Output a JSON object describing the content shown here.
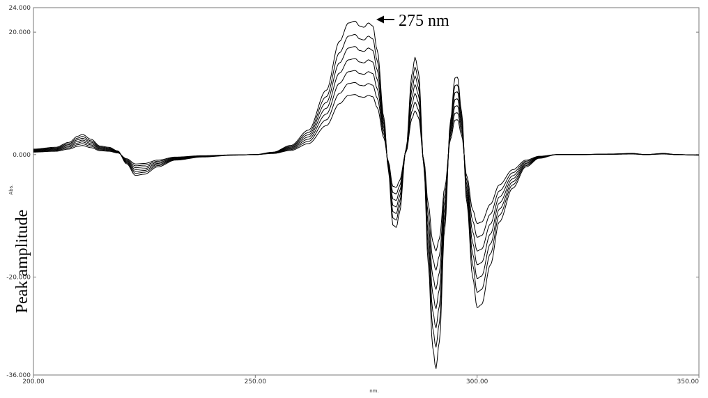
{
  "chart_data": {
    "type": "line",
    "title": "",
    "xlabel": "nm.",
    "ylabel_small": "Abs.",
    "ylabel_overlay": "Peak amplitude",
    "xlim": [
      200,
      350
    ],
    "ylim": [
      -36,
      24
    ],
    "x_ticks": [
      200,
      250,
      300,
      350
    ],
    "x_tick_labels": [
      "200.00",
      "250.00",
      "300.00",
      "350.00"
    ],
    "y_ticks": [
      24,
      20,
      0,
      -20,
      -36
    ],
    "y_tick_labels": [
      "24.000",
      "20.000",
      "0.000",
      "-20.000",
      "-36.000"
    ],
    "grid": false,
    "legend": "none",
    "annotation": {
      "text": "275 nm",
      "x": 275,
      "y": 21.8
    },
    "line_color": "#000000",
    "curve_scales": [
      0.45,
      0.54,
      0.63,
      0.72,
      0.81,
      0.9,
      1.0
    ],
    "profile_max_curve": [
      [
        200,
        0.9
      ],
      [
        205,
        1.2
      ],
      [
        208,
        2.0
      ],
      [
        210,
        3.0
      ],
      [
        211,
        3.3
      ],
      [
        213,
        2.5
      ],
      [
        215,
        1.4
      ],
      [
        217,
        1.2
      ],
      [
        219,
        0.6
      ],
      [
        221,
        -1.5
      ],
      [
        223,
        -3.4
      ],
      [
        225,
        -3.2
      ],
      [
        228,
        -2.0
      ],
      [
        232,
        -0.9
      ],
      [
        238,
        -0.4
      ],
      [
        245,
        -0.1
      ],
      [
        250,
        0.0
      ],
      [
        254,
        0.4
      ],
      [
        258,
        1.5
      ],
      [
        262,
        4.0
      ],
      [
        266,
        10.5
      ],
      [
        269,
        18.5
      ],
      [
        271,
        21.5
      ],
      [
        272.5,
        21.8
      ],
      [
        273.5,
        21.0
      ],
      [
        274.5,
        20.8
      ],
      [
        275.5,
        21.5
      ],
      [
        276.5,
        21.0
      ],
      [
        277.5,
        17.0
      ],
      [
        279,
        6.0
      ],
      [
        280,
        -2.5
      ],
      [
        281,
        -11.5
      ],
      [
        281.8,
        -11.9
      ],
      [
        282.5,
        -9.5
      ],
      [
        284,
        1.0
      ],
      [
        285.3,
        13.0
      ],
      [
        286,
        15.9
      ],
      [
        286.8,
        13.5
      ],
      [
        288,
        -2.0
      ],
      [
        289,
        -18.0
      ],
      [
        290,
        -31.5
      ],
      [
        290.7,
        -35.0
      ],
      [
        291.5,
        -30.5
      ],
      [
        292.7,
        -12.0
      ],
      [
        294,
        5.5
      ],
      [
        295,
        12.5
      ],
      [
        295.6,
        12.7
      ],
      [
        296.5,
        7.0
      ],
      [
        297.7,
        -8.0
      ],
      [
        299,
        -20.0
      ],
      [
        300,
        -25.0
      ],
      [
        301,
        -24.5
      ],
      [
        303,
        -18.0
      ],
      [
        305,
        -11.0
      ],
      [
        308,
        -5.5
      ],
      [
        311,
        -2.0
      ],
      [
        314,
        -0.6
      ],
      [
        318,
        0.0
      ],
      [
        322,
        0.0
      ],
      [
        330,
        0.1
      ],
      [
        335,
        0.2
      ],
      [
        338,
        0.0
      ],
      [
        342,
        0.2
      ],
      [
        345,
        0.0
      ],
      [
        350,
        -0.1
      ]
    ]
  }
}
